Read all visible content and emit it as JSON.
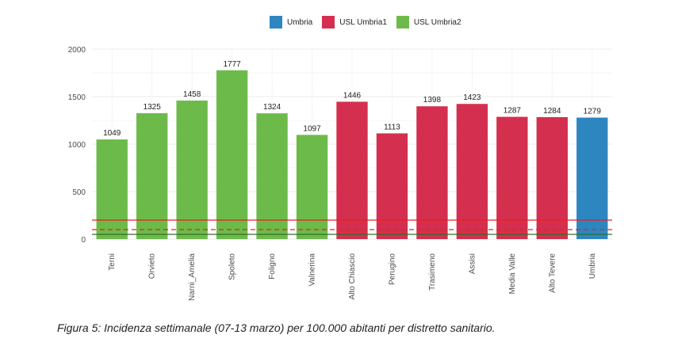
{
  "caption": "Figura 5: Incidenza settimanale (07-13 marzo) per 100.000 abitanti per distretto sanitario.",
  "chart_data": {
    "type": "bar",
    "categories": [
      "Terni",
      "Orvieto",
      "Narni_Amelia",
      "Spoleto",
      "Foligno",
      "Valnerina",
      "Alto Chiascio",
      "Perugino",
      "Trasimeno",
      "Assisi",
      "Media Valle",
      "Alto Tevere",
      "Umbria"
    ],
    "values": [
      1049,
      1325,
      1458,
      1777,
      1324,
      1097,
      1446,
      1113,
      1398,
      1423,
      1287,
      1284,
      1279
    ],
    "groups": [
      "USL Umbria2",
      "USL Umbria2",
      "USL Umbria2",
      "USL Umbria2",
      "USL Umbria2",
      "USL Umbria2",
      "USL Umbria1",
      "USL Umbria1",
      "USL Umbria1",
      "USL Umbria1",
      "USL Umbria1",
      "USL Umbria1",
      "Umbria"
    ],
    "legend": [
      {
        "name": "Umbria",
        "color": "#2e86c1"
      },
      {
        "name": "USL Umbria1",
        "color": "#d42f4e"
      },
      {
        "name": "USL Umbria2",
        "color": "#6cbb4a"
      }
    ],
    "yticks": [
      0,
      500,
      1000,
      1500,
      2000
    ],
    "ylim": [
      0,
      2000
    ],
    "reference_lines": [
      {
        "value": 200,
        "color": "#e8201f",
        "style": "solid"
      },
      {
        "value": 100,
        "color": "#e8201f",
        "style": "dashed"
      },
      {
        "value": 50,
        "color": "#2f6f26",
        "style": "solid"
      }
    ],
    "legend_position": "top",
    "grid": true
  }
}
